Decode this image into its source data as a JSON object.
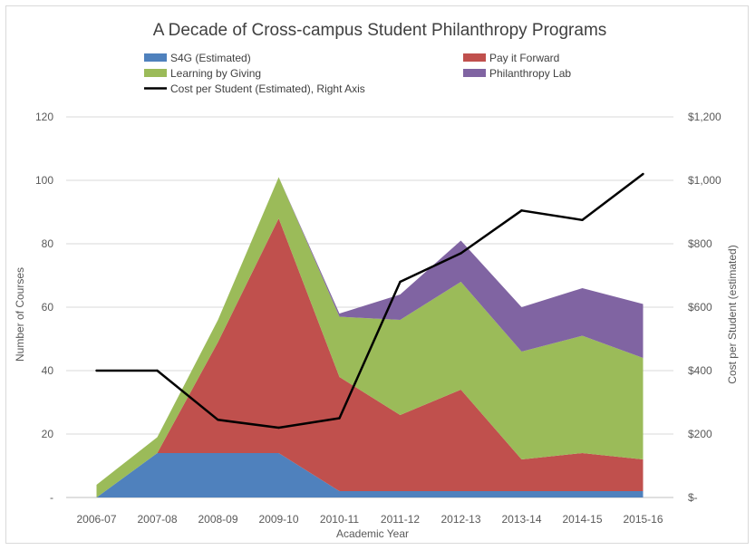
{
  "chart_data": {
    "type": "area",
    "title": "A Decade of Cross-campus Student Philanthropy Programs",
    "xlabel": "Academic Year",
    "ylabel": "Number of Courses",
    "ylabel_right": "Cost per Student (estimated)",
    "categories": [
      "2006-07",
      "2007-08",
      "2008-09",
      "2009-10",
      "2010-11",
      "2011-12",
      "2012-13",
      "2013-14",
      "2014-15",
      "2015-16"
    ],
    "ylim": [
      0,
      120
    ],
    "yticks": [
      "-",
      "20",
      "40",
      "60",
      "80",
      "100",
      "120"
    ],
    "ylim_right": [
      0,
      1200
    ],
    "yticks_right": [
      "$-",
      "$200",
      "$400",
      "$600",
      "$800",
      "$1,000",
      "$1,200"
    ],
    "grid": true,
    "legend_position": "top",
    "stacked_series": [
      {
        "name": "S4G (Estimated)",
        "color": "#4f81bd",
        "values": [
          0,
          14,
          14,
          14,
          2,
          2,
          2,
          2,
          2,
          2
        ]
      },
      {
        "name": "Pay it Forward",
        "color": "#c0504d",
        "values": [
          0,
          0,
          35,
          74,
          36,
          24,
          32,
          10,
          12,
          10
        ]
      },
      {
        "name": "Learning by Giving",
        "color": "#9bbb59",
        "values": [
          4,
          5,
          7,
          13,
          19,
          30,
          34,
          34,
          37,
          32
        ]
      },
      {
        "name": "Philanthropy Lab",
        "color": "#8064a2",
        "values": [
          0,
          0,
          0,
          0,
          1,
          8,
          13,
          14,
          15,
          17
        ]
      }
    ],
    "line_series": {
      "name": "Cost per Student (Estimated), Right Axis",
      "color": "#000000",
      "axis": "right",
      "values": [
        400,
        400,
        245,
        220,
        250,
        680,
        770,
        905,
        875,
        1020
      ]
    },
    "legend_order": [
      "S4G (Estimated)",
      "Pay it Forward",
      "Learning by Giving",
      "Philanthropy Lab",
      "Cost per Student (Estimated), Right Axis"
    ]
  }
}
